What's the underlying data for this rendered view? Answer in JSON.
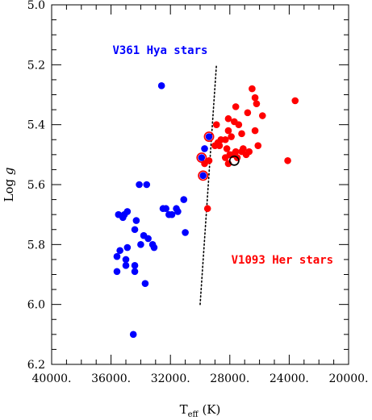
{
  "chart_data": {
    "type": "scatter",
    "xlabel": "T",
    "xlabel_sub": "eff",
    "xlabel_unit": "(K)",
    "ylabel": "Log",
    "ylabel_var": "g",
    "xlim": [
      40000,
      20000
    ],
    "ylim": [
      6.2,
      5.0
    ],
    "x_ticks": [
      {
        "value": 40000,
        "label": "40000."
      },
      {
        "value": 36000,
        "label": "36000."
      },
      {
        "value": 32000,
        "label": "32000."
      },
      {
        "value": 28000,
        "label": "28000."
      },
      {
        "value": 24000,
        "label": "24000."
      },
      {
        "value": 20000,
        "label": "20000."
      }
    ],
    "y_ticks": [
      {
        "value": 5.0,
        "label": "5.0"
      },
      {
        "value": 5.2,
        "label": "5.2"
      },
      {
        "value": 5.4,
        "label": "5.4"
      },
      {
        "value": 5.6,
        "label": "5.6"
      },
      {
        "value": 5.8,
        "label": "5.8"
      },
      {
        "value": 6.0,
        "label": "6.0"
      },
      {
        "value": 6.2,
        "label": "6.2"
      }
    ],
    "x_minor_step": 1000,
    "y_minor_step": 0.05,
    "annotations": [
      {
        "text": "V361 Hya stars",
        "color": "#0000ff",
        "x": 35900,
        "y": 5.15
      },
      {
        "text": "V1093 Her stars",
        "color": "#ff0000",
        "x": 27900,
        "y": 5.85
      }
    ],
    "boundary_line": {
      "x": [
        30000,
        28900
      ],
      "y": [
        6.0,
        5.2
      ],
      "style": "dotted",
      "color": "#000000"
    },
    "series": [
      {
        "name": "V361 Hya stars",
        "color": "#0000ff",
        "x": [
          32600,
          29700,
          34100,
          33600,
          32300,
          31600,
          31100,
          32500,
          31500,
          32100,
          31900,
          31000,
          34900,
          35500,
          35100,
          35200,
          34300,
          34400,
          33800,
          33500,
          34000,
          33200,
          33100,
          34900,
          35400,
          35600,
          34400,
          35000,
          34400,
          35600,
          35000,
          33700,
          34500
        ],
        "y": [
          5.27,
          5.48,
          5.6,
          5.6,
          5.68,
          5.68,
          5.65,
          5.68,
          5.69,
          5.7,
          5.7,
          5.76,
          5.69,
          5.7,
          5.7,
          5.71,
          5.72,
          5.75,
          5.77,
          5.78,
          5.8,
          5.8,
          5.81,
          5.81,
          5.82,
          5.84,
          5.87,
          5.87,
          5.89,
          5.89,
          5.85,
          5.93,
          6.1
        ]
      },
      {
        "name": "V1093 Her stars",
        "color": "#ff0000",
        "x": [
          26500,
          26300,
          26200,
          23600,
          27600,
          28100,
          28900,
          26800,
          27700,
          28100,
          25800,
          26300,
          27400,
          27900,
          27200,
          28300,
          28600,
          28800,
          29000,
          27100,
          28700,
          28200,
          28000,
          27600,
          26700,
          26900,
          27800,
          27200,
          26100,
          28300,
          27500,
          29400,
          28100,
          29700,
          24100,
          29500
        ],
        "y": [
          5.28,
          5.31,
          5.33,
          5.32,
          5.34,
          5.38,
          5.4,
          5.36,
          5.39,
          5.42,
          5.37,
          5.42,
          5.4,
          5.44,
          5.43,
          5.45,
          5.45,
          5.46,
          5.47,
          5.48,
          5.47,
          5.48,
          5.5,
          5.49,
          5.49,
          5.5,
          5.5,
          5.49,
          5.47,
          5.51,
          5.51,
          5.52,
          5.53,
          5.53,
          5.52,
          5.68
        ]
      }
    ],
    "ringed_points": [
      {
        "x": 29400,
        "y": 5.44,
        "fill": "#0000ff",
        "ring": "#ff0000"
      },
      {
        "x": 29900,
        "y": 5.51,
        "fill": "#0000ff",
        "ring": "#ff0000"
      },
      {
        "x": 29800,
        "y": 5.57,
        "fill": "#0000ff",
        "ring": "#ff0000"
      },
      {
        "x": 27700,
        "y": 5.52,
        "fill": "none",
        "ring": "#000000"
      }
    ]
  }
}
